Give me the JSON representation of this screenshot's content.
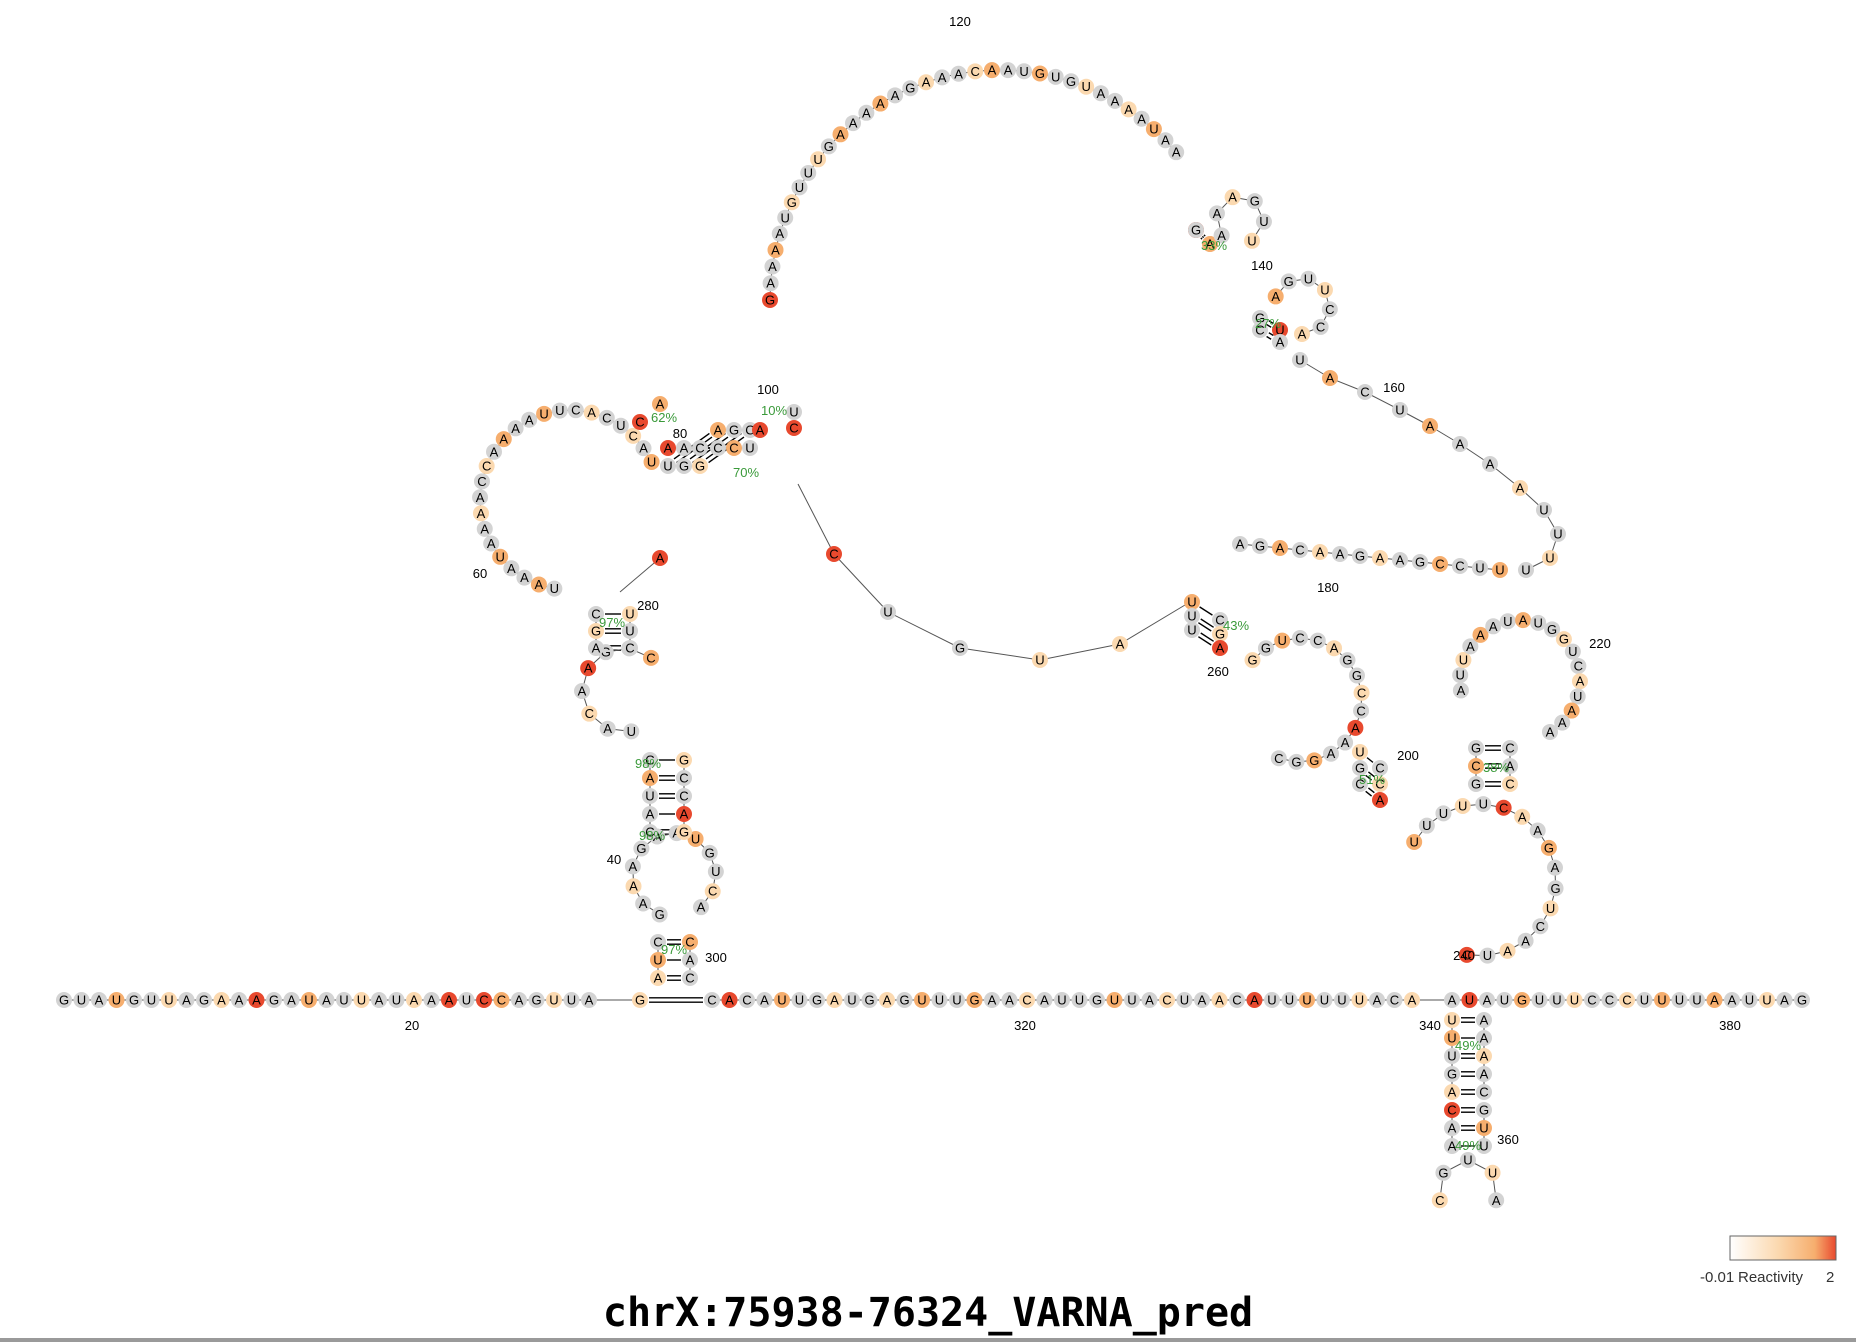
{
  "title": "chrX:75938-76324_VARNA_pred",
  "colors": {
    "low": "#d3d3d3",
    "mid": "#fbd9b0",
    "midhigh": "#f6ae6e",
    "high": "#e8492e",
    "pct": "#3a9a3a",
    "line": "#555555"
  },
  "legend": {
    "min_label": "-0.01",
    "label": "Reactivity",
    "max_label": "2"
  },
  "diagram": {
    "bases_5prime": "GUAUGUUAGAAAGAUAUUAUAAAUCCAGUUAG",
    "bases_3prime": "CACAUUGAUGAGUUUGAACAUUGUUACUAACAUUUUUUACAAUAUGUUUCCCUUUUAAUUAG",
    "position_labels": [
      "20",
      "40",
      "60",
      "80",
      "100",
      "120",
      "140",
      "160",
      "180",
      "200",
      "220",
      "240",
      "260",
      "280",
      "300",
      "320",
      "340",
      "360",
      "380"
    ],
    "pair_percentages": [
      "97%",
      "98%",
      "98%",
      "97%",
      "62%",
      "70%",
      "10%",
      "33%",
      "27%",
      "43%",
      "51%",
      "38%",
      "49%",
      "49%"
    ],
    "loop_bases": {
      "main_arc_left": "AGAAUGUUUGAAAAGAAAGC",
      "main_arc_top": "AAUGUGUAAAAUAAAUAAGG",
      "hairpin_140": "AAAGUU",
      "hairpin_150": "AGUUCCA",
      "loop_160": "UACUAAAAUUUUCUUCC",
      "hairpin_220": "AAAUAUGGUCAUAAA",
      "loop_240": "AACGUACGAAACUUUU",
      "loop_260": "CAAAGGGUCCAGGC",
      "loop_60": "ACCAAAAUUAAAUACUCA",
      "hairpin_360": "CGUUA"
    }
  }
}
